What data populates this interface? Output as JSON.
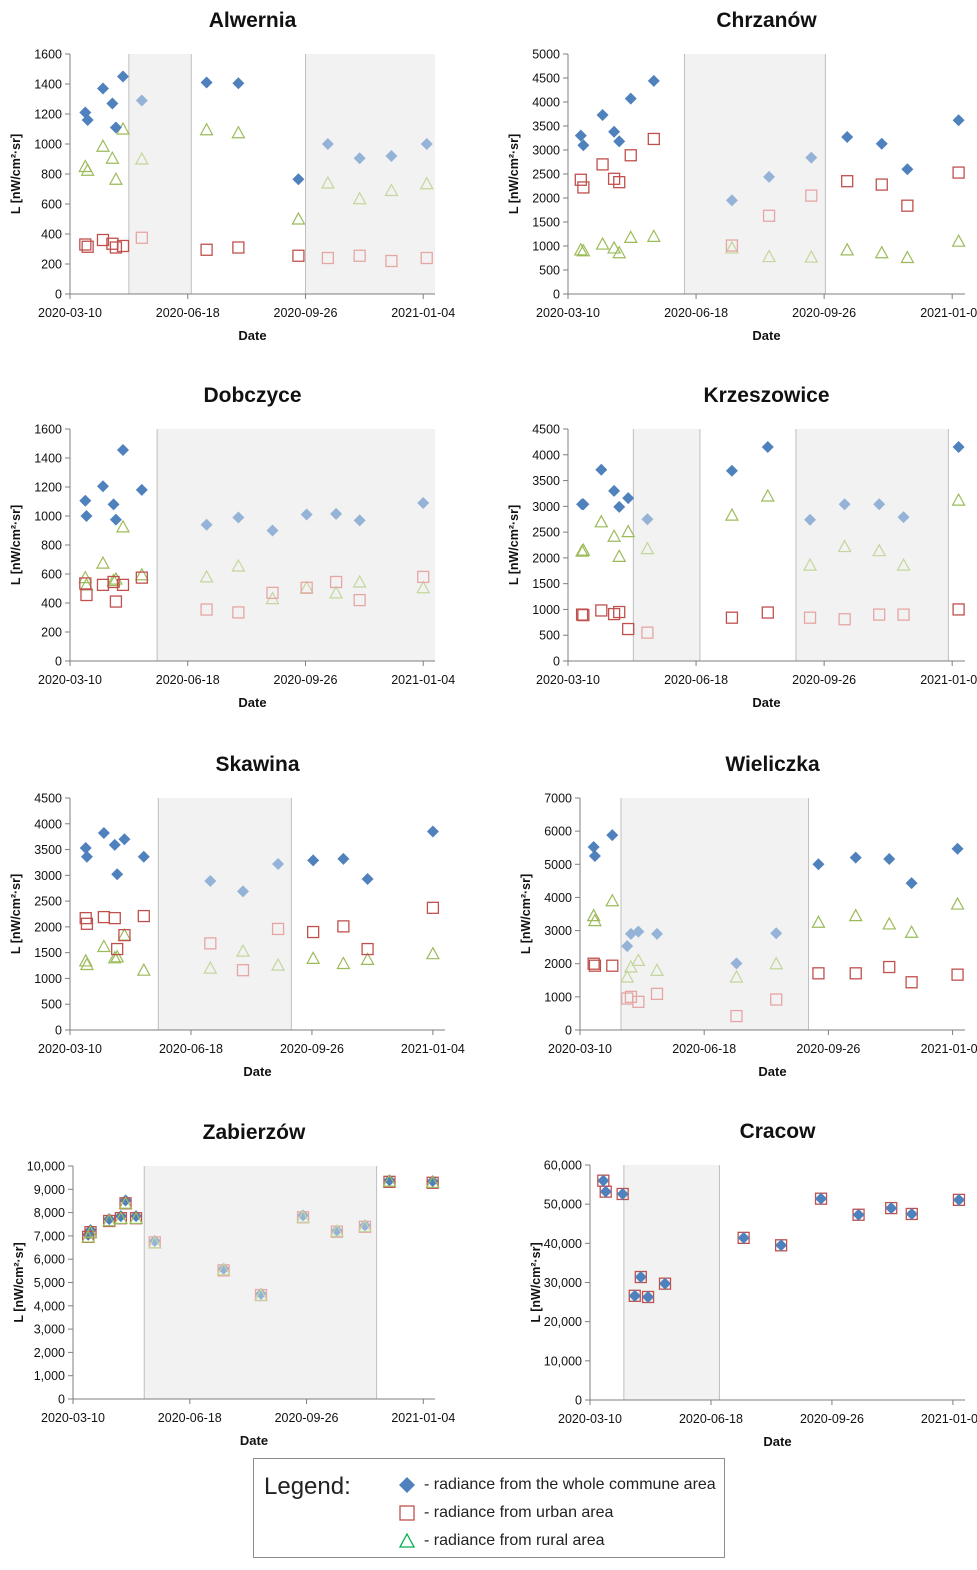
{
  "colors": {
    "whole": "#4f81bd",
    "whole_light": "#95b3d7",
    "urban": "#c0504d",
    "urban_light": "#e6a6a4",
    "rural": "#9bbb59",
    "rural_light": "#c3d69b",
    "shade": "#f2f2f2",
    "shade_border": "#bfbfbf"
  },
  "legend": {
    "title": "Legend:",
    "items": [
      {
        "symbol": "diamond",
        "label": "- radiance from the whole commune area"
      },
      {
        "symbol": "square",
        "label": "- radiance from urban area"
      },
      {
        "symbol": "triangle",
        "label": "- radiance from rural area"
      }
    ]
  },
  "chart_data": [
    {
      "type": "scatter",
      "title": "Alwernia",
      "xlabel": "Date",
      "ylabel": "L [nW/cm²·sr]",
      "ylim": [
        0,
        1600
      ],
      "ystep": 200,
      "xlim": [
        0,
        310
      ],
      "xticks": [
        {
          "value": 0,
          "label": "2020-03-10"
        },
        {
          "value": 100,
          "label": "2020-06-18"
        },
        {
          "value": 200,
          "label": "2020-09-26"
        },
        {
          "value": 300,
          "label": "2021-01-04"
        }
      ],
      "shaded": [
        [
          50,
          103
        ],
        [
          200,
          310
        ]
      ],
      "series": [
        {
          "name": "whole",
          "x": [
            13,
            15,
            28,
            36,
            39,
            45,
            61,
            116,
            143,
            194,
            219,
            246,
            273,
            303
          ],
          "y": [
            1210,
            1160,
            1370,
            1270,
            1110,
            1450,
            1290,
            1410,
            1405,
            765,
            1000,
            905,
            920,
            1000
          ]
        },
        {
          "name": "urban",
          "x": [
            13,
            15,
            28,
            36,
            39,
            45,
            61,
            116,
            143,
            194,
            219,
            246,
            273,
            303
          ],
          "y": [
            330,
            315,
            360,
            335,
            310,
            320,
            375,
            295,
            310,
            255,
            240,
            255,
            220,
            240
          ]
        },
        {
          "name": "rural",
          "x": [
            13,
            15,
            28,
            36,
            39,
            45,
            61,
            116,
            143,
            194,
            219,
            246,
            273,
            303
          ],
          "y": [
            850,
            825,
            985,
            905,
            765,
            1100,
            900,
            1095,
            1075,
            500,
            740,
            635,
            690,
            735
          ]
        }
      ]
    },
    {
      "type": "scatter",
      "title": "Chrzanów",
      "xlabel": "Date",
      "ylabel": "L [nW/cm²·sr]",
      "ylim": [
        0,
        5000
      ],
      "ystep": 500,
      "xlim": [
        0,
        310
      ],
      "xticks": [
        {
          "value": 0,
          "label": "2020-03-10"
        },
        {
          "value": 100,
          "label": "2020-06-18"
        },
        {
          "value": 200,
          "label": "2020-09-26"
        },
        {
          "value": 300,
          "label": "2021-01-04"
        }
      ],
      "shaded": [
        [
          91,
          201
        ]
      ],
      "series": [
        {
          "name": "whole",
          "x": [
            10,
            12,
            27,
            36,
            40,
            49,
            67,
            128,
            157,
            190,
            218,
            245,
            265,
            305
          ],
          "y": [
            3300,
            3100,
            3730,
            3380,
            3180,
            4070,
            4440,
            1950,
            2440,
            2840,
            3270,
            3130,
            2600,
            3620
          ]
        },
        {
          "name": "urban",
          "x": [
            10,
            12,
            27,
            36,
            40,
            49,
            67,
            128,
            157,
            190,
            218,
            245,
            265,
            305
          ],
          "y": [
            2380,
            2220,
            2700,
            2400,
            2330,
            2890,
            3230,
            1010,
            1630,
            2050,
            2350,
            2280,
            1840,
            2530
          ]
        },
        {
          "name": "rural",
          "x": [
            10,
            12,
            27,
            36,
            40,
            49,
            67,
            128,
            157,
            190,
            218,
            245,
            265,
            305
          ],
          "y": [
            920,
            900,
            1040,
            960,
            860,
            1180,
            1200,
            960,
            780,
            770,
            920,
            860,
            760,
            1100
          ]
        }
      ]
    },
    {
      "type": "scatter",
      "title": "Dobczyce",
      "xlabel": "Date",
      "ylabel": "L [nW/cm²·sr]",
      "ylim": [
        0,
        1600
      ],
      "ystep": 200,
      "xlim": [
        0,
        310
      ],
      "xticks": [
        {
          "value": 0,
          "label": "2020-03-10"
        },
        {
          "value": 100,
          "label": "2020-06-18"
        },
        {
          "value": 200,
          "label": "2020-09-26"
        },
        {
          "value": 300,
          "label": "2021-01-04"
        }
      ],
      "shaded": [
        [
          74,
          310
        ]
      ],
      "series": [
        {
          "name": "whole",
          "x": [
            13,
            14,
            28,
            37,
            39,
            45,
            61,
            116,
            143,
            172,
            201,
            226,
            246,
            300
          ],
          "y": [
            1105,
            1000,
            1205,
            1080,
            975,
            1455,
            1180,
            940,
            990,
            900,
            1010,
            1015,
            970,
            1090
          ]
        },
        {
          "name": "urban",
          "x": [
            13,
            14,
            28,
            37,
            39,
            45,
            61,
            116,
            143,
            172,
            201,
            226,
            246,
            300
          ],
          "y": [
            535,
            455,
            525,
            545,
            410,
            525,
            575,
            355,
            335,
            470,
            505,
            545,
            420,
            580
          ]
        },
        {
          "name": "rural",
          "x": [
            13,
            14,
            28,
            37,
            39,
            45,
            61,
            116,
            143,
            172,
            201,
            226,
            246,
            300
          ],
          "y": [
            575,
            525,
            675,
            555,
            565,
            925,
            595,
            580,
            655,
            430,
            505,
            470,
            545,
            505
          ]
        }
      ]
    },
    {
      "type": "scatter",
      "title": "Krzeszowice",
      "xlabel": "Date",
      "ylabel": "L [nW/cm²·sr]",
      "ylim": [
        0,
        4500
      ],
      "ystep": 500,
      "xlim": [
        0,
        310
      ],
      "xticks": [
        {
          "value": 0,
          "label": "2020-03-10"
        },
        {
          "value": 100,
          "label": "2020-06-18"
        },
        {
          "value": 200,
          "label": "2020-09-26"
        },
        {
          "value": 300,
          "label": "2021-01-04"
        }
      ],
      "shaded": [
        [
          51,
          103
        ],
        [
          178,
          297
        ]
      ],
      "series": [
        {
          "name": "whole",
          "x": [
            11,
            12,
            26,
            36,
            40,
            47,
            62,
            128,
            156,
            189,
            216,
            243,
            262,
            305
          ],
          "y": [
            3040,
            3040,
            3710,
            3300,
            2990,
            3160,
            2750,
            3690,
            4150,
            2740,
            3040,
            3040,
            2790,
            4150
          ]
        },
        {
          "name": "urban",
          "x": [
            11,
            12,
            26,
            36,
            40,
            47,
            62,
            128,
            156,
            189,
            216,
            243,
            262,
            305
          ],
          "y": [
            900,
            890,
            980,
            910,
            950,
            620,
            550,
            840,
            940,
            840,
            810,
            900,
            900,
            1000
          ]
        },
        {
          "name": "rural",
          "x": [
            11,
            12,
            26,
            36,
            40,
            47,
            62,
            128,
            156,
            189,
            216,
            243,
            262,
            305
          ],
          "y": [
            2130,
            2150,
            2700,
            2420,
            2030,
            2510,
            2180,
            2830,
            3200,
            1860,
            2220,
            2140,
            1860,
            3120
          ]
        }
      ]
    },
    {
      "type": "scatter",
      "title": "Skawina",
      "xlabel": "Date",
      "ylabel": "L [nW/cm²·sr]",
      "ylim": [
        0,
        4500
      ],
      "ystep": 500,
      "xlim": [
        0,
        310
      ],
      "xticks": [
        {
          "value": 0,
          "label": "2020-03-10"
        },
        {
          "value": 100,
          "label": "2020-06-18"
        },
        {
          "value": 200,
          "label": "2020-09-26"
        },
        {
          "value": 300,
          "label": "2021-01-04"
        }
      ],
      "shaded": [
        [
          73,
          183
        ]
      ],
      "series": [
        {
          "name": "whole",
          "x": [
            13,
            14,
            28,
            37,
            39,
            45,
            61,
            116,
            143,
            172,
            201,
            226,
            246,
            300
          ],
          "y": [
            3530,
            3360,
            3820,
            3590,
            3020,
            3700,
            3360,
            2890,
            2690,
            3220,
            3290,
            3320,
            2930,
            3850
          ]
        },
        {
          "name": "urban",
          "x": [
            13,
            14,
            28,
            37,
            39,
            45,
            61,
            116,
            143,
            172,
            201,
            226,
            246,
            300
          ],
          "y": [
            2170,
            2060,
            2190,
            2170,
            1570,
            1840,
            2210,
            1680,
            1160,
            1960,
            1900,
            2010,
            1570,
            2370
          ]
        },
        {
          "name": "rural",
          "x": [
            13,
            14,
            28,
            37,
            39,
            45,
            61,
            116,
            143,
            172,
            201,
            226,
            246,
            300
          ],
          "y": [
            1340,
            1270,
            1620,
            1400,
            1420,
            1840,
            1160,
            1200,
            1530,
            1260,
            1390,
            1290,
            1370,
            1480
          ]
        }
      ]
    },
    {
      "type": "scatter",
      "title": "Wieliczka",
      "xlabel": "Date",
      "ylabel": "L [nW/cm²·sr]",
      "ylim": [
        0,
        7000
      ],
      "ystep": 1000,
      "xlim": [
        0,
        310
      ],
      "xticks": [
        {
          "value": 0,
          "label": "2020-03-10"
        },
        {
          "value": 100,
          "label": "2020-06-18"
        },
        {
          "value": 200,
          "label": "2020-09-26"
        },
        {
          "value": 300,
          "label": "2021-01-04"
        }
      ],
      "shaded": [
        [
          33,
          184
        ]
      ],
      "series": [
        {
          "name": "whole",
          "x": [
            11,
            12,
            26,
            38,
            41,
            47,
            62,
            126,
            158,
            192,
            222,
            249,
            267,
            304
          ],
          "y": [
            5520,
            5250,
            5880,
            2530,
            2900,
            2970,
            2900,
            2010,
            2920,
            5000,
            5200,
            5160,
            4430,
            5470
          ]
        },
        {
          "name": "urban",
          "x": [
            11,
            12,
            26,
            38,
            41,
            47,
            62,
            126,
            158,
            192,
            222,
            249,
            267,
            304
          ],
          "y": [
            2000,
            1940,
            1940,
            950,
            1000,
            850,
            1090,
            420,
            920,
            1710,
            1710,
            1900,
            1440,
            1670
          ]
        },
        {
          "name": "rural",
          "x": [
            11,
            12,
            26,
            38,
            41,
            47,
            62,
            126,
            158,
            192,
            222,
            249,
            267,
            304
          ],
          "y": [
            3450,
            3300,
            3900,
            1600,
            1900,
            2100,
            1800,
            1600,
            2000,
            3250,
            3450,
            3200,
            2950,
            3800
          ]
        }
      ]
    },
    {
      "type": "scatter",
      "title": "Zabierzów",
      "xlabel": "Date",
      "ylabel": "L [nW/cm²·sr]",
      "ylim": [
        0,
        10000
      ],
      "ystep": 1000,
      "ytick_format": "comma",
      "xlim": [
        0,
        310
      ],
      "xticks": [
        {
          "value": 0,
          "label": "2020-03-10"
        },
        {
          "value": 100,
          "label": "2020-06-18"
        },
        {
          "value": 200,
          "label": "2020-09-26"
        },
        {
          "value": 300,
          "label": "2021-01-04"
        }
      ],
      "shaded": [
        [
          61,
          260
        ]
      ],
      "series": [
        {
          "name": "whole",
          "x": [
            13,
            15,
            31,
            41,
            45,
            54,
            70,
            129,
            161,
            197,
            226,
            250,
            271,
            308
          ],
          "y": [
            7050,
            7250,
            7720,
            7850,
            8520,
            7850,
            6780,
            5590,
            4510,
            7880,
            7230,
            7450,
            9390,
            9350
          ]
        },
        {
          "name": "urban",
          "x": [
            13,
            15,
            31,
            41,
            45,
            54,
            70,
            129,
            161,
            197,
            226,
            250,
            271,
            308
          ],
          "y": [
            6960,
            7160,
            7640,
            7760,
            8400,
            7760,
            6720,
            5520,
            4460,
            7800,
            7180,
            7390,
            9320,
            9280
          ]
        },
        {
          "name": "rural",
          "x": [
            13,
            15,
            31,
            41,
            45,
            54,
            70,
            129,
            161,
            197,
            226,
            250,
            271,
            308
          ],
          "y": [
            6950,
            7150,
            7650,
            7750,
            8400,
            7750,
            6700,
            5550,
            4450,
            7800,
            7200,
            7400,
            9350,
            9300
          ]
        }
      ]
    },
    {
      "type": "scatter",
      "title": "Cracow",
      "xlabel": "Date",
      "ylabel": "L [nW/cm²·sr]",
      "ylim": [
        0,
        60000
      ],
      "ystep": 10000,
      "ytick_format": "comma",
      "xlim": [
        0,
        310
      ],
      "xticks": [
        {
          "value": 0,
          "label": "2020-03-10"
        },
        {
          "value": 100,
          "label": "2020-06-18"
        },
        {
          "value": 200,
          "label": "2020-09-26"
        },
        {
          "value": 300,
          "label": "2021-01-04"
        }
      ],
      "shaded": [
        [
          28,
          107
        ]
      ],
      "series": [
        {
          "name": "whole",
          "x": [
            11,
            13,
            27,
            37,
            42,
            48,
            62,
            127,
            158,
            191,
            222,
            249,
            266,
            305
          ],
          "y": [
            56000,
            53200,
            52600,
            26600,
            31400,
            26300,
            29700,
            41400,
            39500,
            51400,
            47300,
            49000,
            47500,
            51100
          ]
        },
        {
          "name": "urban",
          "x": [
            11,
            13,
            27,
            37,
            42,
            48,
            62,
            127,
            158,
            191,
            222,
            249,
            266,
            305
          ],
          "y": [
            56000,
            53200,
            52600,
            26600,
            31400,
            26300,
            29700,
            41400,
            39500,
            51400,
            47300,
            49000,
            47500,
            51100
          ]
        }
      ]
    }
  ]
}
